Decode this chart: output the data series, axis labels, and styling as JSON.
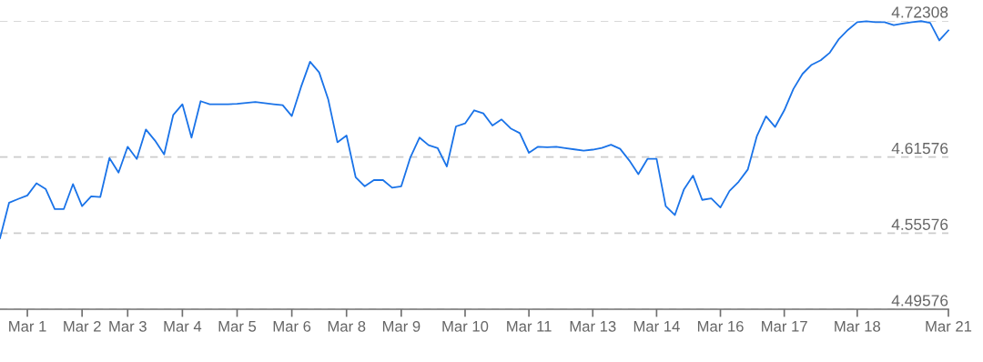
{
  "chart_data": {
    "type": "line",
    "categories": [
      null,
      null,
      null,
      "Mar 1",
      null,
      null,
      null,
      null,
      null,
      "Mar 2",
      null,
      null,
      null,
      null,
      "Mar 3",
      null,
      null,
      null,
      null,
      null,
      "Mar 4",
      null,
      null,
      null,
      null,
      null,
      "Mar 5",
      null,
      null,
      null,
      null,
      null,
      "Mar 6",
      null,
      null,
      null,
      null,
      null,
      "Mar 8",
      null,
      null,
      null,
      null,
      null,
      "Mar 9",
      null,
      null,
      null,
      null,
      null,
      null,
      "Mar 10",
      null,
      null,
      null,
      null,
      null,
      null,
      "Mar 11",
      null,
      null,
      null,
      null,
      null,
      null,
      "Mar 13",
      null,
      null,
      null,
      null,
      null,
      null,
      "Mar 14",
      null,
      null,
      null,
      null,
      null,
      null,
      "Mar 16",
      null,
      null,
      null,
      null,
      null,
      null,
      "Mar 17",
      null,
      null,
      null,
      null,
      null,
      null,
      null,
      "Mar 18",
      null,
      null,
      null,
      null,
      null,
      null,
      null,
      null,
      null,
      "Mar 21"
    ],
    "series": [
      {
        "color": "#1a73e8",
        "values": [
          4.5518,
          4.5798,
          4.5827,
          4.5855,
          4.5951,
          4.5906,
          4.5748,
          4.5748,
          4.5944,
          4.5771,
          4.5848,
          4.5843,
          4.615,
          4.6035,
          4.6239,
          4.6143,
          4.6375,
          4.6287,
          4.6179,
          4.649,
          4.6574,
          4.6311,
          4.6598,
          4.6574,
          4.6574,
          4.6574,
          4.6578,
          4.6585,
          4.6591,
          4.6582,
          4.6574,
          4.6567,
          4.6481,
          4.6708,
          4.6909,
          4.6825,
          4.661,
          4.6274,
          4.6327,
          4.5999,
          4.5927,
          4.5976,
          4.5976,
          4.5916,
          4.5927,
          4.6155,
          4.6311,
          4.6251,
          4.6227,
          4.6083,
          4.6399,
          4.6423,
          4.6526,
          4.6502,
          4.6406,
          4.6454,
          4.6383,
          4.6346,
          4.6191,
          4.6239,
          4.6235,
          4.6239,
          4.6228,
          4.6218,
          4.6208,
          4.6216,
          4.623,
          4.6255,
          4.6222,
          4.6131,
          4.6023,
          4.6143,
          4.6143,
          4.5771,
          4.57,
          4.5903,
          4.6011,
          4.582,
          4.5831,
          4.576,
          4.5891,
          4.5963,
          4.6059,
          4.6323,
          4.6479,
          4.6395,
          4.6526,
          4.6694,
          4.6813,
          4.6885,
          4.6921,
          4.6981,
          4.7089,
          4.7161,
          4.7221,
          4.7228,
          4.7221,
          4.7221,
          4.7197,
          4.721,
          4.7221,
          4.7229,
          4.7215,
          4.7077,
          4.7156
        ]
      }
    ],
    "ylim": [
      4.49576,
      4.72308
    ],
    "yticks": [
      4.49576,
      4.55576,
      4.61576,
      4.72308
    ],
    "grid": "y",
    "line_style": "solid",
    "marker": "none"
  }
}
